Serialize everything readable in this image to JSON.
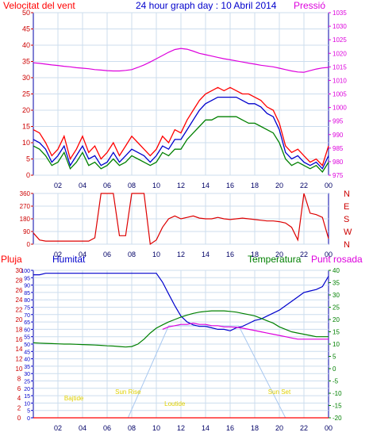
{
  "header": {
    "wind_title": "Velocitat del vent",
    "graph_title": "24 hour graph day : 10 Abril 2014",
    "pressure_title": "Pressió"
  },
  "panel3_header": {
    "rain": "Pluja",
    "humidity": "Humitat",
    "temperature": "Temperatura",
    "dewpoint": "Punt rosada"
  },
  "colors": {
    "wind_gust": "#ff0000",
    "wind_avg": "#0000cc",
    "wind_speed": "#008000",
    "pressure": "#dd00dd",
    "direction": "#dd0000",
    "humidity": "#0000cc",
    "temperature": "#008000",
    "dewpoint": "#dd00dd",
    "rain": "#ff0000",
    "sun_arc": "#a8c8f0",
    "sun_label": "#e0d000",
    "frame": "#0000aa",
    "grid": "#ccddee"
  },
  "chart_data": [
    {
      "type": "line",
      "title": "Velocitat del vent",
      "x_ticks": [
        "02",
        "04",
        "06",
        "08",
        "10",
        "12",
        "14",
        "16",
        "18",
        "20",
        "22",
        "00"
      ],
      "left_axis": {
        "ticks": [
          "0",
          "5",
          "10",
          "15",
          "20",
          "25",
          "30",
          "35",
          "40",
          "45",
          "50"
        ],
        "ylim": [
          0,
          50
        ]
      },
      "right_axis": {
        "label": "Pressió",
        "ticks": [
          "975",
          "980",
          "985",
          "990",
          "995",
          "1000",
          "1005",
          "1010",
          "1015",
          "1020",
          "1025",
          "1030",
          "1035"
        ],
        "ylim": [
          975,
          1035
        ]
      },
      "x": [
        0,
        0.5,
        1,
        1.5,
        2,
        2.5,
        3,
        3.5,
        4,
        4.5,
        5,
        5.5,
        6,
        6.5,
        7,
        7.5,
        8,
        8.5,
        9,
        9.5,
        10,
        10.5,
        11,
        11.5,
        12,
        12.5,
        13,
        13.5,
        14,
        14.5,
        15,
        15.5,
        16,
        16.5,
        17,
        17.5,
        18,
        18.5,
        19,
        19.5,
        20,
        20.5,
        21,
        21.5,
        22,
        22.5,
        23,
        23.5,
        24
      ],
      "series": [
        {
          "name": "gust",
          "axis": "left",
          "values": [
            14,
            13,
            10,
            6,
            8,
            12,
            5,
            8,
            12,
            7,
            9,
            5,
            7,
            10,
            6,
            9,
            12,
            10,
            8,
            6,
            8,
            12,
            10,
            14,
            13,
            17,
            20,
            23,
            25,
            26,
            27,
            26,
            27,
            26,
            25,
            25,
            24,
            23,
            21,
            20,
            16,
            9,
            7,
            8,
            6,
            4,
            5,
            3,
            9
          ]
        },
        {
          "name": "average",
          "axis": "left",
          "values": [
            11,
            10,
            8,
            4,
            6,
            9,
            3,
            6,
            9,
            5,
            6,
            3,
            4,
            7,
            4,
            6,
            8,
            7,
            6,
            4,
            6,
            9,
            8,
            11,
            11,
            14,
            17,
            20,
            22,
            23,
            24,
            24,
            24,
            24,
            23,
            22,
            22,
            21,
            19,
            18,
            14,
            7,
            5,
            6,
            4,
            3,
            4,
            2,
            6
          ]
        },
        {
          "name": "speed",
          "axis": "left",
          "values": [
            9,
            8,
            6,
            3,
            4,
            7,
            2,
            4,
            7,
            3,
            4,
            2,
            3,
            5,
            3,
            4,
            6,
            5,
            4,
            3,
            4,
            7,
            6,
            8,
            8,
            11,
            13,
            15,
            17,
            17,
            18,
            18,
            18,
            18,
            17,
            16,
            16,
            15,
            14,
            13,
            10,
            5,
            3,
            4,
            3,
            2,
            3,
            1,
            4
          ]
        },
        {
          "name": "pressure",
          "axis": "right",
          "values": [
            1016.5,
            1016.3,
            1016,
            1015.7,
            1015.5,
            1015.2,
            1015,
            1014.7,
            1014.5,
            1014.3,
            1014,
            1013.8,
            1013.6,
            1013.5,
            1013.5,
            1013.7,
            1014,
            1014.8,
            1015.7,
            1016.8,
            1018,
            1019.2,
            1020.4,
            1021.4,
            1021.8,
            1021.5,
            1020.8,
            1020,
            1019.5,
            1019,
            1018.5,
            1018,
            1017.6,
            1017.2,
            1016.8,
            1016.4,
            1016,
            1015.6,
            1015.3,
            1015,
            1014.5,
            1014,
            1013.5,
            1013.1,
            1013,
            1013.6,
            1014.2,
            1014.6,
            1014.8
          ]
        }
      ]
    },
    {
      "type": "line",
      "x_ticks": [
        "02",
        "04",
        "06",
        "08",
        "10",
        "12",
        "14",
        "16",
        "18",
        "20",
        "22",
        "00"
      ],
      "left_axis": {
        "ticks": [
          "0",
          "90",
          "180",
          "270",
          "360"
        ],
        "ylim": [
          0,
          360
        ]
      },
      "right_axis": {
        "ticks": [
          "N",
          "W",
          "S",
          "E",
          "N"
        ]
      },
      "x": [
        0,
        0.5,
        1,
        1.5,
        2,
        2.5,
        3,
        3.5,
        4,
        4.5,
        5,
        5.5,
        6,
        6.5,
        7,
        7.5,
        8,
        8.5,
        9,
        9.5,
        10,
        10.5,
        11,
        11.5,
        12,
        12.5,
        13,
        13.5,
        14,
        14.5,
        15,
        15.5,
        16,
        16.5,
        17,
        17.5,
        18,
        18.5,
        19,
        19.5,
        20,
        20.5,
        21,
        21.5,
        22,
        22.5,
        23,
        23.5,
        24
      ],
      "series": [
        {
          "name": "direction",
          "values": [
            80,
            30,
            22,
            22,
            22,
            22,
            22,
            22,
            22,
            22,
            45,
            360,
            360,
            360,
            60,
            60,
            360,
            360,
            360,
            0,
            30,
            120,
            180,
            200,
            180,
            190,
            200,
            185,
            180,
            180,
            190,
            180,
            175,
            180,
            185,
            180,
            175,
            170,
            165,
            165,
            160,
            150,
            120,
            30,
            360,
            220,
            210,
            190,
            40
          ]
        }
      ]
    },
    {
      "type": "line",
      "x_ticks": [
        "02",
        "04",
        "06",
        "08",
        "10",
        "12",
        "14",
        "16",
        "18",
        "20",
        "22",
        "00"
      ],
      "left_axis": {
        "label": "Humitat",
        "ticks": [
          "0",
          "5",
          "10",
          "15",
          "20",
          "25",
          "30",
          "35",
          "40",
          "45",
          "50",
          "55",
          "60",
          "65",
          "70",
          "75",
          "80",
          "85",
          "90",
          "95",
          "100"
        ],
        "ylim": [
          0,
          100
        ]
      },
      "rain_axis": {
        "label": "Pluja",
        "ticks": [
          "0",
          "2",
          "4",
          "6",
          "8",
          "10",
          "12",
          "14",
          "16",
          "18",
          "20",
          "22",
          "24",
          "26",
          "28",
          "30"
        ],
        "ylim": [
          0,
          30
        ]
      },
      "right_axis": {
        "label": "Temperatura",
        "ticks": [
          "-20",
          "-15",
          "-10",
          "-5",
          "0",
          "5",
          "10",
          "15",
          "20",
          "25",
          "30",
          "35",
          "40"
        ],
        "ylim": [
          -20,
          40
        ]
      },
      "annotations": [
        "Bajtide",
        "Sun Rise",
        "Loutide",
        "Sun Set"
      ],
      "x": [
        0,
        0.5,
        1,
        1.5,
        2,
        2.5,
        3,
        3.5,
        4,
        4.5,
        5,
        5.5,
        6,
        6.5,
        7,
        7.5,
        8,
        8.5,
        9,
        9.5,
        10,
        10.5,
        11,
        11.5,
        12,
        12.5,
        13,
        13.5,
        14,
        14.5,
        15,
        15.5,
        16,
        16.5,
        17,
        17.5,
        18,
        18.5,
        19,
        19.5,
        20,
        20.5,
        21,
        21.5,
        22,
        22.5,
        23,
        23.5,
        24
      ],
      "series": [
        {
          "name": "Humitat",
          "axis": "left",
          "values": [
            97,
            97,
            98,
            98,
            98,
            98,
            98,
            98,
            98,
            98,
            98,
            98,
            98,
            98,
            98,
            98,
            98,
            98,
            98,
            98,
            98,
            92,
            84,
            76,
            69,
            65,
            63,
            62,
            62,
            61,
            60,
            60,
            59,
            61,
            62,
            64,
            66,
            67,
            69,
            71,
            73,
            76,
            79,
            82,
            85,
            86,
            87,
            89,
            96
          ]
        },
        {
          "name": "Temperatura",
          "axis": "right",
          "values": [
            10.5,
            10.4,
            10.3,
            10.2,
            10.1,
            10,
            10,
            9.9,
            9.8,
            9.7,
            9.6,
            9.5,
            9.3,
            9.2,
            9,
            8.8,
            9,
            10,
            12,
            14.5,
            16.5,
            17.8,
            19,
            20,
            21,
            21.8,
            22.5,
            23,
            23.3,
            23.5,
            23.5,
            23.5,
            23.3,
            23,
            22.5,
            22,
            21.5,
            20.5,
            19.5,
            18.5,
            17,
            16,
            15,
            14.5,
            14,
            13.5,
            13,
            13,
            13
          ]
        },
        {
          "name": "Punt rosada",
          "axis": "right",
          "values": [
            null,
            null,
            null,
            null,
            null,
            null,
            null,
            null,
            null,
            null,
            null,
            null,
            null,
            null,
            null,
            null,
            null,
            null,
            null,
            null,
            null,
            16,
            17,
            17.5,
            18,
            18,
            18.5,
            18,
            18,
            17.5,
            17.5,
            17,
            17,
            16.8,
            16.5,
            16,
            15.5,
            15,
            14.5,
            14,
            13.5,
            13,
            12.5,
            12,
            12,
            12,
            12,
            12,
            12
          ]
        },
        {
          "name": "Pluja",
          "axis": "rain",
          "values": [
            0,
            0,
            0,
            0,
            0,
            0,
            0,
            0,
            0,
            0,
            0,
            0,
            0,
            0,
            0,
            0,
            0,
            0,
            0,
            0,
            0,
            0,
            0,
            0,
            0,
            0,
            0,
            0,
            0,
            0,
            0,
            0,
            0,
            0,
            0,
            0,
            0,
            0,
            0,
            0,
            0,
            0,
            0,
            0,
            0,
            0,
            0,
            0,
            0
          ]
        }
      ]
    }
  ]
}
